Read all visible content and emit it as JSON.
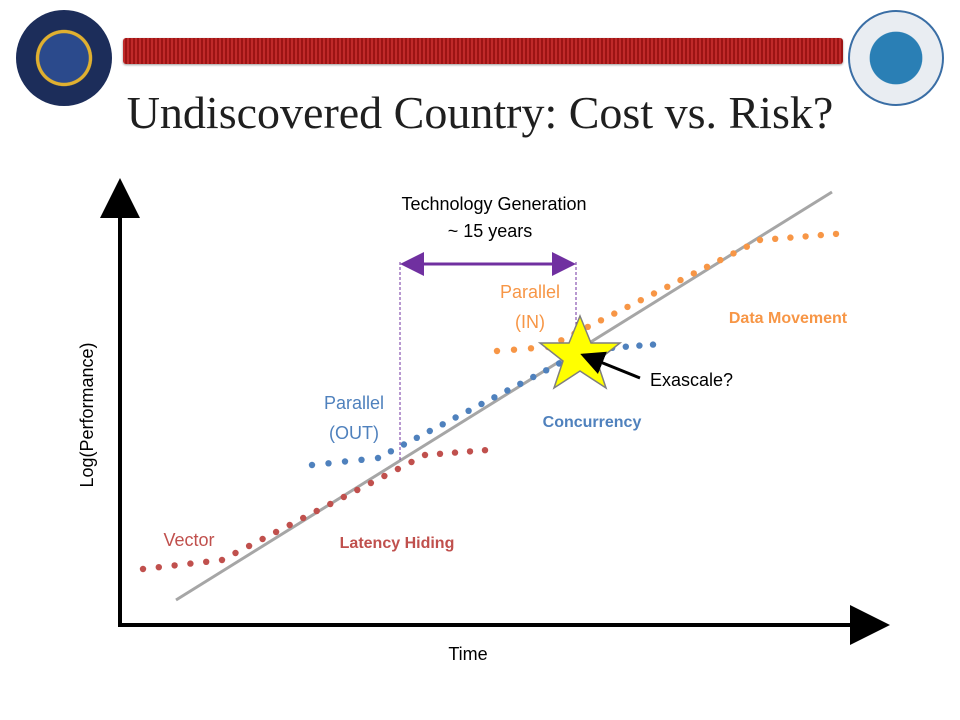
{
  "title": "Undiscovered Country: Cost vs. Risk?",
  "colors": {
    "red": "#c0504d",
    "blue": "#4f81bd",
    "orange": "#f79646",
    "purple": "#7030a0",
    "trend": "#a6a6a6",
    "star": "#ffff00"
  },
  "icons": [
    "nsa-seal-icon",
    "research-directorate-seal-icon",
    "star-icon"
  ],
  "labels": {
    "vector": "Vector",
    "parallel_out_1": "Parallel",
    "parallel_out_2": "(OUT)",
    "parallel_in_1": "Parallel",
    "parallel_in_2": "(IN)",
    "latency_hiding": "Latency Hiding",
    "concurrency": "Concurrency",
    "data_movement": "Data Movement",
    "exascale": "Exascale?",
    "tech_gen_1": "Technology Generation",
    "tech_gen_2": "~ 15 years",
    "x_axis": "Time",
    "y_axis": "Log(Performance)"
  }
}
